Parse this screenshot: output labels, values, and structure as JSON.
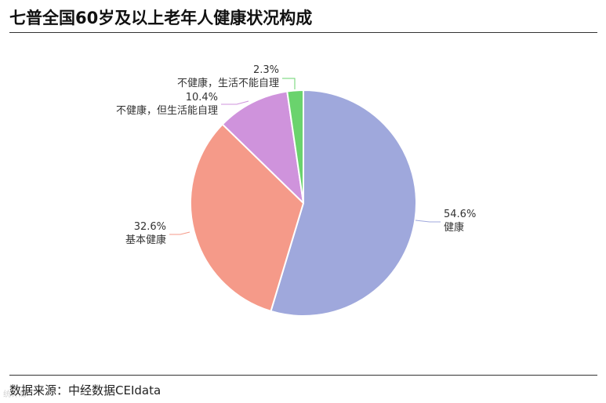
{
  "title": "七普全国60岁及以上老年人健康状况构成",
  "source": "数据来源：中经数据CEIdata",
  "watermark": "统计局",
  "chart_data": {
    "type": "pie",
    "title": "七普全国60岁及以上老年人健康状况构成",
    "legend": "none",
    "slices": [
      {
        "label": "健康",
        "value": 54.6,
        "value_label": "54.6%",
        "color": "#9fa8dc"
      },
      {
        "label": "基本健康",
        "value": 32.6,
        "value_label": "32.6%",
        "color": "#f59a89"
      },
      {
        "label": "不健康，但生活能自理",
        "value": 10.4,
        "value_label": "10.4%",
        "color": "#cf93dc"
      },
      {
        "label": "不健康，生活不能自理",
        "value": 2.3,
        "value_label": "2.3%",
        "color": "#6ad36d"
      }
    ]
  }
}
